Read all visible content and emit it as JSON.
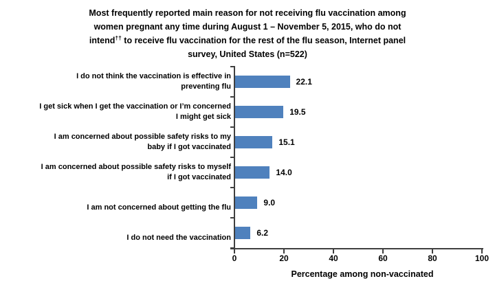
{
  "title": {
    "line1": "Most frequently reported main reason for not receiving flu vaccination among",
    "line2": "women pregnant any time during August 1 – November 5, 2015, who do not",
    "line3_before_sup": "intend",
    "line3_sup": "††",
    "line3_after_sup": " to receive flu vaccination for the rest of the flu season, Internet panel",
    "line4": "survey, United States (n=522)"
  },
  "chart_data": {
    "type": "bar",
    "orientation": "horizontal",
    "categories": [
      "I do not think the vaccination is effective in\npreventing flu",
      "I get sick when I get the vaccination or I’m concerned\nI might get sick",
      "I am concerned about possible safety risks to my\nbaby if I got vaccinated",
      "I am concerned about possible safety risks to myself\nif I got vaccinated",
      "I am not concerned about getting the flu",
      "I do not need the vaccination"
    ],
    "values": [
      22.1,
      19.5,
      15.1,
      14.0,
      9.0,
      6.2
    ],
    "value_labels": [
      "22.1",
      "19.5",
      "15.1",
      "14.0",
      "9.0",
      "6.2"
    ],
    "xlabel": "Percentage among non-vaccinated",
    "xlim": [
      0,
      100
    ],
    "xticks": [
      0,
      20,
      40,
      60,
      80,
      100
    ],
    "xtick_labels": [
      "0",
      "20",
      "40",
      "60",
      "80",
      "100"
    ],
    "grid": false,
    "legend": false,
    "colors": {
      "bar": "#4F81BD",
      "axis": "#3f3f3f",
      "text": "#000000",
      "background": "#ffffff"
    }
  }
}
